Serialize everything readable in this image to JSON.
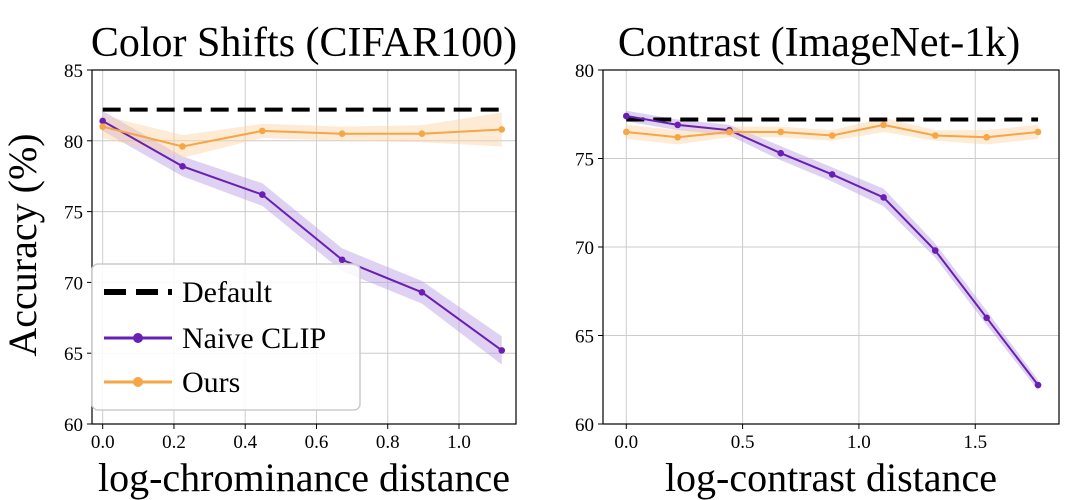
{
  "figure": {
    "ylabel": "Accuracy (%)"
  },
  "chart_data": [
    {
      "type": "line",
      "title": "Color Shifts (CIFAR100)",
      "xlabel": "log-chrominance distance",
      "ylabel": "Accuracy (%)",
      "xlim": [
        -0.03,
        1.16
      ],
      "ylim": [
        60,
        85
      ],
      "xticks": [
        0.0,
        0.2,
        0.4,
        0.6,
        0.8,
        1.0
      ],
      "xtick_labels": [
        "0.0",
        "0.2",
        "0.4",
        "0.6",
        "0.8",
        "1.0"
      ],
      "yticks": [
        60,
        65,
        70,
        75,
        80,
        85
      ],
      "ytick_labels": [
        "60",
        "65",
        "70",
        "75",
        "80",
        "85"
      ],
      "grid": true,
      "legend": {
        "placement": "bottom-left",
        "entries": [
          "Default",
          "Naive CLIP",
          "Ours"
        ]
      },
      "series": [
        {
          "name": "Default",
          "style": "dashed",
          "color": "#000000",
          "x": [
            0.0,
            1.12
          ],
          "y": [
            82.2,
            82.2
          ]
        },
        {
          "name": "Naive CLIP",
          "style": "solid-marker",
          "color": "#6a1fb3",
          "band_color": "#b89ae0",
          "x": [
            0.0,
            0.224,
            0.448,
            0.672,
            0.896,
            1.12
          ],
          "y": [
            81.4,
            78.2,
            76.2,
            71.6,
            69.3,
            65.2
          ],
          "band": [
            0.7,
            0.7,
            0.8,
            0.8,
            0.8,
            1.0
          ]
        },
        {
          "name": "Ours",
          "style": "solid-marker",
          "color": "#f5a645",
          "band_color": "#fbd3a3",
          "x": [
            0.0,
            0.224,
            0.448,
            0.672,
            0.896,
            1.12
          ],
          "y": [
            81.0,
            79.6,
            80.7,
            80.5,
            80.5,
            80.8
          ],
          "band": [
            0.8,
            0.8,
            0.5,
            0.5,
            0.6,
            1.2
          ]
        }
      ]
    },
    {
      "type": "line",
      "title": "Contrast (ImageNet-1k)",
      "xlabel": "log-contrast distance",
      "ylabel": "",
      "xlim": [
        -0.1,
        1.86
      ],
      "ylim": [
        60,
        80
      ],
      "xticks": [
        0.0,
        0.5,
        1.0,
        1.5
      ],
      "xtick_labels": [
        "0.0",
        "0.5",
        "1.0",
        "1.5"
      ],
      "yticks": [
        60,
        65,
        70,
        75,
        80
      ],
      "ytick_labels": [
        "60",
        "65",
        "70",
        "75",
        "80"
      ],
      "grid": true,
      "series": [
        {
          "name": "Default",
          "style": "dashed",
          "color": "#000000",
          "x": [
            0.0,
            1.77
          ],
          "y": [
            77.2,
            77.2
          ]
        },
        {
          "name": "Naive CLIP",
          "style": "solid-marker",
          "color": "#6a1fb3",
          "band_color": "#b89ae0",
          "x": [
            0.0,
            0.221,
            0.443,
            0.664,
            0.885,
            1.106,
            1.328,
            1.549,
            1.77
          ],
          "y": [
            77.4,
            76.9,
            76.6,
            75.3,
            74.1,
            72.8,
            69.8,
            66.0,
            62.2
          ],
          "band": [
            0.3,
            0.3,
            0.3,
            0.4,
            0.4,
            0.5,
            0.4,
            0.4,
            0.3
          ]
        },
        {
          "name": "Ours",
          "style": "solid-marker",
          "color": "#f5a645",
          "band_color": "#fbd3a3",
          "x": [
            0.0,
            0.221,
            0.443,
            0.664,
            0.885,
            1.106,
            1.328,
            1.549,
            1.77
          ],
          "y": [
            76.5,
            76.2,
            76.5,
            76.5,
            76.3,
            76.9,
            76.3,
            76.2,
            76.5
          ],
          "band": [
            0.4,
            0.4,
            0.3,
            0.3,
            0.3,
            0.4,
            0.3,
            0.4,
            0.4
          ]
        }
      ]
    }
  ]
}
